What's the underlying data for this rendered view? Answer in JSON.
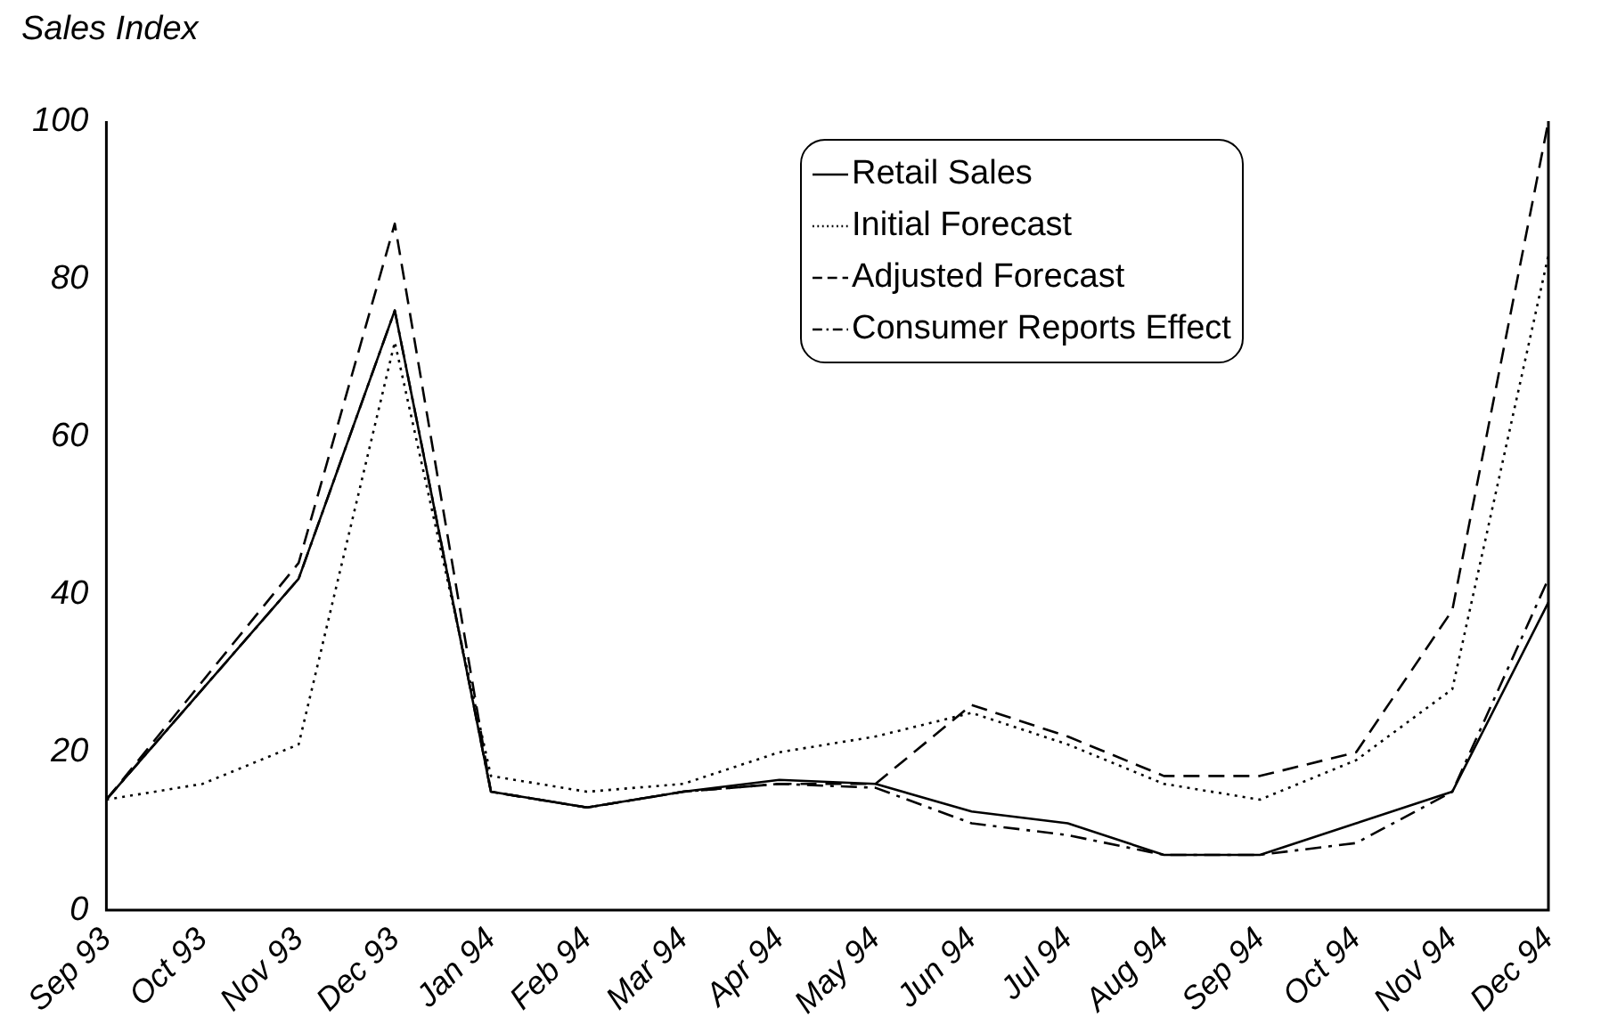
{
  "chart_data": {
    "type": "line",
    "ylabel": "Sales Index",
    "categories": [
      "Sep 93",
      "Oct 93",
      "Nov 93",
      "Dec 93",
      "Jan 94",
      "Feb 94",
      "Mar 94",
      "Apr 94",
      "May 94",
      "Jun 94",
      "Jul 94",
      "Aug 94",
      "Sep 94",
      "Oct 94",
      "Nov 94",
      "Dec 94"
    ],
    "ylim": [
      0,
      100
    ],
    "yticks": [
      0,
      20,
      40,
      60,
      80,
      100
    ],
    "grid": false,
    "legend": "top right",
    "marker": "none",
    "series": [
      {
        "name": "Retail Sales",
        "color": "#000000",
        "line_style": "solid",
        "values": [
          14,
          28,
          42,
          76,
          15,
          13,
          15,
          16.5,
          16,
          12.5,
          11,
          7,
          7,
          11,
          15,
          39
        ]
      },
      {
        "name": "Initial Forecast",
        "color": "#000000",
        "line_style": "dotted",
        "values": [
          14,
          16,
          21,
          72,
          17,
          15,
          16,
          20,
          22,
          25,
          21,
          16,
          14,
          19,
          28,
          83
        ]
      },
      {
        "name": "Adjusted Forecast",
        "color": "#000000",
        "line_style": "dashed",
        "values": [
          14,
          29,
          44,
          87,
          15,
          13,
          15,
          16,
          16,
          26,
          22,
          17,
          17,
          20,
          38,
          100
        ]
      },
      {
        "name": "Consumer Reports Effect",
        "color": "#000000",
        "line_style": "dashdot",
        "values": [
          14,
          28,
          42,
          76,
          15,
          13,
          15,
          16,
          15.5,
          11,
          9.5,
          7,
          7,
          8.5,
          15,
          42
        ]
      }
    ]
  }
}
